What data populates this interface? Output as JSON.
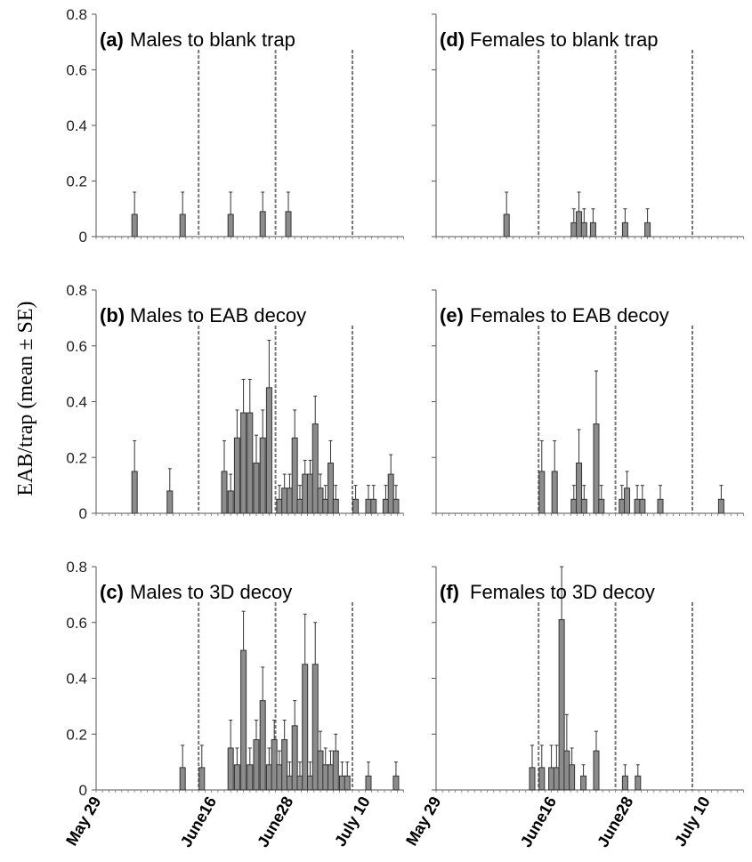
{
  "figure": {
    "y_axis_title": "EAB/trap (mean ± SE)"
  },
  "chart_data": [
    {
      "type": "bar",
      "panel": "a",
      "letter": "(a)",
      "title": "Males to blank trap",
      "ylim": [
        0,
        0.8
      ],
      "yticks": [
        "0",
        "0.2",
        "0.4",
        "0.6",
        "0.8"
      ],
      "x_date_labels": [
        "May 29",
        "June16",
        "June28",
        "July 10"
      ],
      "x_date_days": [
        0,
        18,
        30,
        42
      ],
      "vlines_days": [
        16,
        28,
        40
      ],
      "bars": [
        {
          "day": 6,
          "value": 0.08,
          "se": 0.08
        },
        {
          "day": 13.5,
          "value": 0.08,
          "se": 0.08
        },
        {
          "day": 21,
          "value": 0.08,
          "se": 0.08
        },
        {
          "day": 26,
          "value": 0.09,
          "se": 0.07
        },
        {
          "day": 30,
          "value": 0.09,
          "se": 0.07
        }
      ]
    },
    {
      "type": "bar",
      "panel": "b",
      "letter": "(b)",
      "title": "Males to EAB decoy",
      "ylim": [
        0,
        0.8
      ],
      "yticks": [
        "0",
        "0.2",
        "0.4",
        "0.6",
        "0.8"
      ],
      "x_date_labels": [
        "May 29",
        "June16",
        "June28",
        "July 10"
      ],
      "x_date_days": [
        0,
        18,
        30,
        42
      ],
      "vlines_days": [
        16,
        28,
        40
      ],
      "bars": [
        {
          "day": 6,
          "value": 0.15,
          "se": 0.11
        },
        {
          "day": 11.5,
          "value": 0.08,
          "se": 0.08
        },
        {
          "day": 20,
          "value": 0.15,
          "se": 0.11
        },
        {
          "day": 21,
          "value": 0.08,
          "se": 0.06
        },
        {
          "day": 22,
          "value": 0.27,
          "se": 0.1
        },
        {
          "day": 23,
          "value": 0.36,
          "se": 0.12
        },
        {
          "day": 24,
          "value": 0.36,
          "se": 0.12
        },
        {
          "day": 25,
          "value": 0.18,
          "se": 0.1
        },
        {
          "day": 26,
          "value": 0.27,
          "se": 0.1
        },
        {
          "day": 27,
          "value": 0.45,
          "se": 0.17
        },
        {
          "day": 28.6,
          "value": 0.05,
          "se": 0.05
        },
        {
          "day": 29.4,
          "value": 0.09,
          "se": 0.05
        },
        {
          "day": 30.2,
          "value": 0.09,
          "se": 0.05
        },
        {
          "day": 31,
          "value": 0.27,
          "se": 0.1
        },
        {
          "day": 31.8,
          "value": 0.05,
          "se": 0.05
        },
        {
          "day": 32.6,
          "value": 0.14,
          "se": 0.05
        },
        {
          "day": 33.4,
          "value": 0.14,
          "se": 0.05
        },
        {
          "day": 34.2,
          "value": 0.32,
          "se": 0.1
        },
        {
          "day": 35,
          "value": 0.09,
          "se": 0.05
        },
        {
          "day": 35.8,
          "value": 0.05,
          "se": 0.05
        },
        {
          "day": 36.6,
          "value": 0.18,
          "se": 0.08
        },
        {
          "day": 37.4,
          "value": 0.05,
          "se": 0.05
        },
        {
          "day": 40.5,
          "value": 0.05,
          "se": 0.05
        },
        {
          "day": 42.5,
          "value": 0.05,
          "se": 0.05
        },
        {
          "day": 43.3,
          "value": 0.05,
          "se": 0.05
        },
        {
          "day": 45.2,
          "value": 0.05,
          "se": 0.05
        },
        {
          "day": 46,
          "value": 0.14,
          "se": 0.07
        },
        {
          "day": 46.8,
          "value": 0.05,
          "se": 0.05
        }
      ]
    },
    {
      "type": "bar",
      "panel": "c",
      "letter": "(c)",
      "title": "Males to 3D decoy",
      "ylim": [
        0,
        0.8
      ],
      "yticks": [
        "0",
        "0.2",
        "0.4",
        "0.6",
        "0.8"
      ],
      "x_date_labels": [
        "May 29",
        "June16",
        "June28",
        "July 10"
      ],
      "x_date_days": [
        0,
        18,
        30,
        42
      ],
      "vlines_days": [
        16,
        28,
        40
      ],
      "bars": [
        {
          "day": 13.5,
          "value": 0.08,
          "se": 0.08
        },
        {
          "day": 16.5,
          "value": 0.08,
          "se": 0.08
        },
        {
          "day": 21,
          "value": 0.15,
          "se": 0.1
        },
        {
          "day": 22,
          "value": 0.09,
          "se": 0.06
        },
        {
          "day": 23,
          "value": 0.5,
          "se": 0.14
        },
        {
          "day": 24,
          "value": 0.09,
          "se": 0.06
        },
        {
          "day": 25,
          "value": 0.18,
          "se": 0.07
        },
        {
          "day": 26,
          "value": 0.32,
          "se": 0.12
        },
        {
          "day": 27,
          "value": 0.09,
          "se": 0.06
        },
        {
          "day": 27.8,
          "value": 0.18,
          "se": 0.07
        },
        {
          "day": 28.6,
          "value": 0.09,
          "se": 0.05
        },
        {
          "day": 29.4,
          "value": 0.18,
          "se": 0.07
        },
        {
          "day": 30.2,
          "value": 0.05,
          "se": 0.05
        },
        {
          "day": 31,
          "value": 0.23,
          "se": 0.09
        },
        {
          "day": 31.8,
          "value": 0.05,
          "se": 0.05
        },
        {
          "day": 32.6,
          "value": 0.45,
          "se": 0.18
        },
        {
          "day": 33.4,
          "value": 0.05,
          "se": 0.05
        },
        {
          "day": 34.2,
          "value": 0.45,
          "se": 0.15
        },
        {
          "day": 35,
          "value": 0.14,
          "se": 0.07
        },
        {
          "day": 35.8,
          "value": 0.09,
          "se": 0.06
        },
        {
          "day": 36.6,
          "value": 0.09,
          "se": 0.05
        },
        {
          "day": 37.4,
          "value": 0.14,
          "se": 0.06
        },
        {
          "day": 38.4,
          "value": 0.05,
          "se": 0.05
        },
        {
          "day": 39.2,
          "value": 0.05,
          "se": 0.05
        },
        {
          "day": 42.5,
          "value": 0.05,
          "se": 0.05
        },
        {
          "day": 46.8,
          "value": 0.05,
          "se": 0.05
        }
      ]
    },
    {
      "type": "bar",
      "panel": "d",
      "letter": "(d)",
      "title": "Females to blank trap",
      "ylim": [
        0,
        0.8
      ],
      "yticks": [],
      "x_date_labels": [
        "May 29",
        "June16",
        "June28",
        "July 10"
      ],
      "x_date_days": [
        0,
        18,
        30,
        42
      ],
      "vlines_days": [
        16,
        28,
        40
      ],
      "bars": [
        {
          "day": 11,
          "value": 0.08,
          "se": 0.08
        },
        {
          "day": 21.5,
          "value": 0.05,
          "se": 0.05
        },
        {
          "day": 22.3,
          "value": 0.09,
          "se": 0.07
        },
        {
          "day": 23.1,
          "value": 0.05,
          "se": 0.05
        },
        {
          "day": 24.5,
          "value": 0.05,
          "se": 0.05
        },
        {
          "day": 29.5,
          "value": 0.05,
          "se": 0.05
        },
        {
          "day": 33,
          "value": 0.05,
          "se": 0.05
        }
      ]
    },
    {
      "type": "bar",
      "panel": "e",
      "letter": "(e)",
      "title": "Females to EAB decoy",
      "ylim": [
        0,
        0.8
      ],
      "yticks": [],
      "x_date_labels": [
        "May 29",
        "June16",
        "June28",
        "July 10"
      ],
      "x_date_days": [
        0,
        18,
        30,
        42
      ],
      "vlines_days": [
        16,
        28,
        40
      ],
      "bars": [
        {
          "day": 16.5,
          "value": 0.15,
          "se": 0.11
        },
        {
          "day": 18.5,
          "value": 0.15,
          "se": 0.11
        },
        {
          "day": 21.5,
          "value": 0.05,
          "se": 0.05
        },
        {
          "day": 22.3,
          "value": 0.18,
          "se": 0.12
        },
        {
          "day": 23.1,
          "value": 0.05,
          "se": 0.05
        },
        {
          "day": 25,
          "value": 0.32,
          "se": 0.19
        },
        {
          "day": 25.8,
          "value": 0.05,
          "se": 0.05
        },
        {
          "day": 29,
          "value": 0.05,
          "se": 0.05
        },
        {
          "day": 29.8,
          "value": 0.09,
          "se": 0.06
        },
        {
          "day": 31.4,
          "value": 0.05,
          "se": 0.05
        },
        {
          "day": 32.2,
          "value": 0.05,
          "se": 0.05
        },
        {
          "day": 35,
          "value": 0.05,
          "se": 0.05
        },
        {
          "day": 44.5,
          "value": 0.05,
          "se": 0.05
        }
      ]
    },
    {
      "type": "bar",
      "panel": "f",
      "letter": "(f)",
      "title": "Females to 3D decoy",
      "ylim": [
        0,
        0.8
      ],
      "yticks": [],
      "x_date_labels": [
        "May 29",
        "June16",
        "June28",
        "July 10"
      ],
      "x_date_days": [
        0,
        18,
        30,
        42
      ],
      "vlines_days": [
        16,
        28,
        40
      ],
      "bars": [
        {
          "day": 15,
          "value": 0.08,
          "se": 0.08
        },
        {
          "day": 16.5,
          "value": 0.08,
          "se": 0.08
        },
        {
          "day": 18,
          "value": 0.08,
          "se": 0.08
        },
        {
          "day": 18.8,
          "value": 0.08,
          "se": 0.08
        },
        {
          "day": 19.6,
          "value": 0.61,
          "se": 0.19
        },
        {
          "day": 20.4,
          "value": 0.14,
          "se": 0.13
        },
        {
          "day": 21.2,
          "value": 0.09,
          "se": 0.06
        },
        {
          "day": 23,
          "value": 0.05,
          "se": 0.04
        },
        {
          "day": 25,
          "value": 0.14,
          "se": 0.07
        },
        {
          "day": 29.5,
          "value": 0.05,
          "se": 0.04
        },
        {
          "day": 31.5,
          "value": 0.05,
          "se": 0.04
        }
      ]
    }
  ]
}
